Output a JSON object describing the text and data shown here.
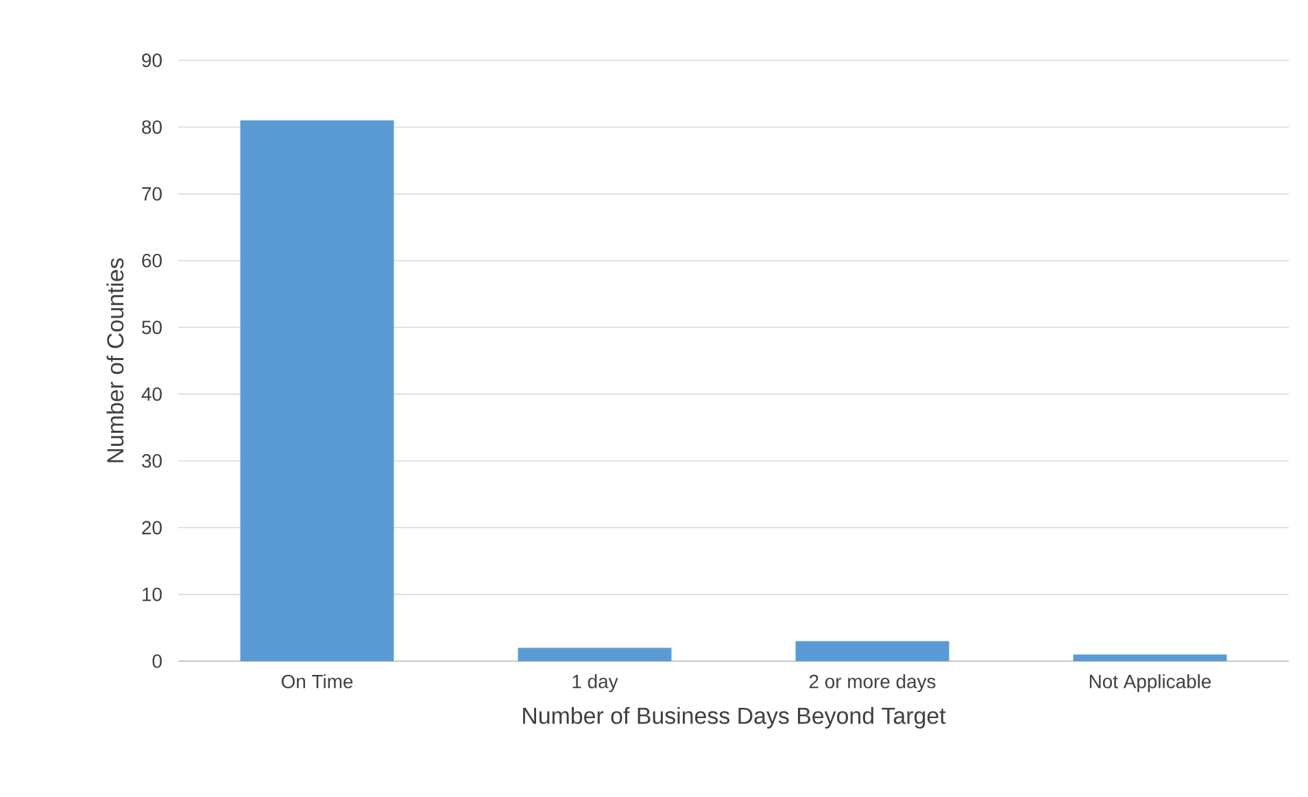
{
  "chart_data": {
    "type": "bar",
    "xlabel": "Number of Business Days Beyond Target",
    "ylabel": "Number of Counties",
    "categories": [
      "On Time",
      "1 day",
      "2 or more days",
      "Not Applicable"
    ],
    "values": [
      81,
      2,
      3,
      1
    ],
    "color": "#5b9bd5",
    "ylim": [
      0,
      90
    ],
    "yticks": [
      0,
      10,
      20,
      30,
      40,
      50,
      60,
      70,
      80,
      90
    ],
    "grid": "y"
  }
}
